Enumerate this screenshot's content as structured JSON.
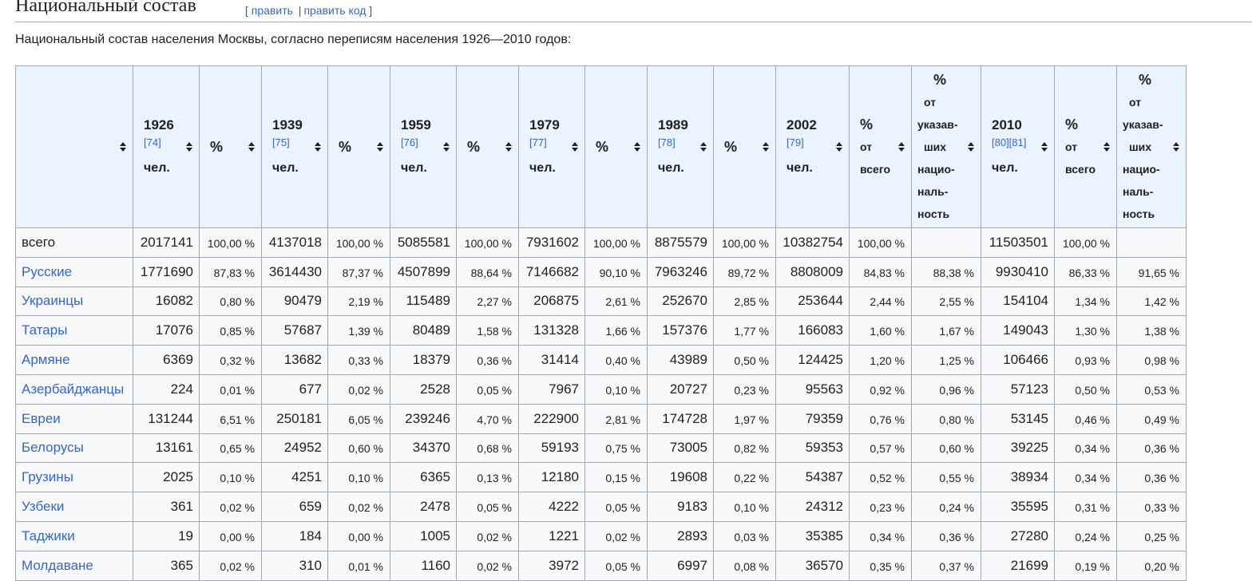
{
  "section": {
    "title": "Национальный состав",
    "edit_open": "[",
    "edit_label": "править",
    "edit_sep": "|",
    "edit_code_label": "править код",
    "edit_close": "]"
  },
  "intro": "Национальный состав населения Москвы, согласно переписям населения 1926—2010 годов:",
  "table": {
    "headers": {
      "y1926": {
        "year": "1926",
        "ref": "[74]",
        "unit": "чел."
      },
      "y1939": {
        "year": "1939",
        "ref": "[75]",
        "unit": "чел."
      },
      "y1959": {
        "year": "1959",
        "ref": "[76]",
        "unit": "чел."
      },
      "y1979": {
        "year": "1979",
        "ref": "[77]",
        "unit": "чел."
      },
      "y1989": {
        "year": "1989",
        "ref": "[78]",
        "unit": "чел."
      },
      "y2002": {
        "year": "2002",
        "ref": "[79]",
        "unit": "чел."
      },
      "y2010": {
        "year": "2010",
        "ref": "[80][81]",
        "unit": "чел."
      },
      "pct": "%",
      "pct_total": [
        "%",
        "от",
        "всего"
      ],
      "pct_declared": [
        "%",
        "от",
        "указав-",
        "ших",
        "нацио-",
        "наль-",
        "ность"
      ]
    },
    "rows": [
      {
        "name": "всего",
        "link": false,
        "cells": [
          "2017141",
          "100,00 %",
          "4137018",
          "100,00 %",
          "5085581",
          "100,00 %",
          "7931602",
          "100,00 %",
          "8875579",
          "100,00 %",
          "10382754",
          "100,00 %",
          "",
          "11503501",
          "100,00 %",
          ""
        ]
      },
      {
        "name": "Русские",
        "link": true,
        "cells": [
          "1771690",
          "87,83 %",
          "3614430",
          "87,37 %",
          "4507899",
          "88,64 %",
          "7146682",
          "90,10 %",
          "7963246",
          "89,72 %",
          "8808009",
          "84,83 %",
          "88,38 %",
          "9930410",
          "86,33 %",
          "91,65 %"
        ]
      },
      {
        "name": "Украинцы",
        "link": true,
        "cells": [
          "16082",
          "0,80 %",
          "90479",
          "2,19 %",
          "115489",
          "2,27 %",
          "206875",
          "2,61 %",
          "252670",
          "2,85 %",
          "253644",
          "2,44 %",
          "2,55 %",
          "154104",
          "1,34 %",
          "1,42 %"
        ]
      },
      {
        "name": "Татары",
        "link": true,
        "cells": [
          "17076",
          "0,85 %",
          "57687",
          "1,39 %",
          "80489",
          "1,58 %",
          "131328",
          "1,66 %",
          "157376",
          "1,77 %",
          "166083",
          "1,60 %",
          "1,67 %",
          "149043",
          "1,30 %",
          "1,38 %"
        ]
      },
      {
        "name": "Армяне",
        "link": true,
        "cells": [
          "6369",
          "0,32 %",
          "13682",
          "0,33 %",
          "18379",
          "0,36 %",
          "31414",
          "0,40 %",
          "43989",
          "0,50 %",
          "124425",
          "1,20 %",
          "1,25 %",
          "106466",
          "0,93 %",
          "0,98 %"
        ]
      },
      {
        "name": "Азербайджанцы",
        "link": true,
        "cells": [
          "224",
          "0,01 %",
          "677",
          "0,02 %",
          "2528",
          "0,05 %",
          "7967",
          "0,10 %",
          "20727",
          "0,23 %",
          "95563",
          "0,92 %",
          "0,96 %",
          "57123",
          "0,50 %",
          "0,53 %"
        ]
      },
      {
        "name": "Евреи",
        "link": true,
        "cells": [
          "131244",
          "6,51 %",
          "250181",
          "6,05 %",
          "239246",
          "4,70 %",
          "222900",
          "2,81 %",
          "174728",
          "1,97 %",
          "79359",
          "0,76 %",
          "0,80 %",
          "53145",
          "0,46 %",
          "0,49 %"
        ]
      },
      {
        "name": "Белорусы",
        "link": true,
        "cells": [
          "13161",
          "0,65 %",
          "24952",
          "0,60 %",
          "34370",
          "0,68 %",
          "59193",
          "0,75 %",
          "73005",
          "0,82 %",
          "59353",
          "0,57 %",
          "0,60 %",
          "39225",
          "0,34 %",
          "0,36 %"
        ]
      },
      {
        "name": "Грузины",
        "link": true,
        "cells": [
          "2025",
          "0,10 %",
          "4251",
          "0,10 %",
          "6365",
          "0,13 %",
          "12180",
          "0,15 %",
          "19608",
          "0,22 %",
          "54387",
          "0,52 %",
          "0,55 %",
          "38934",
          "0,34 %",
          "0,36 %"
        ]
      },
      {
        "name": "Узбеки",
        "link": true,
        "cells": [
          "361",
          "0,02 %",
          "659",
          "0,02 %",
          "2478",
          "0,05 %",
          "4222",
          "0,05 %",
          "9183",
          "0,10 %",
          "24312",
          "0,23 %",
          "0,24 %",
          "35595",
          "0,31 %",
          "0,33 %"
        ]
      },
      {
        "name": "Таджики",
        "link": true,
        "cells": [
          "19",
          "0,00 %",
          "184",
          "0,00 %",
          "1005",
          "0,02 %",
          "1221",
          "0,02 %",
          "2893",
          "0,03 %",
          "35385",
          "0,34 %",
          "0,36 %",
          "27280",
          "0,24 %",
          "0,25 %"
        ]
      },
      {
        "name": "Молдаване",
        "link": true,
        "cells": [
          "365",
          "0,02 %",
          "310",
          "0,01 %",
          "1160",
          "0,02 %",
          "3972",
          "0,05 %",
          "6997",
          "0,08 %",
          "36570",
          "0,35 %",
          "0,37 %",
          "21699",
          "0,19 %",
          "0,20 %"
        ]
      }
    ]
  }
}
